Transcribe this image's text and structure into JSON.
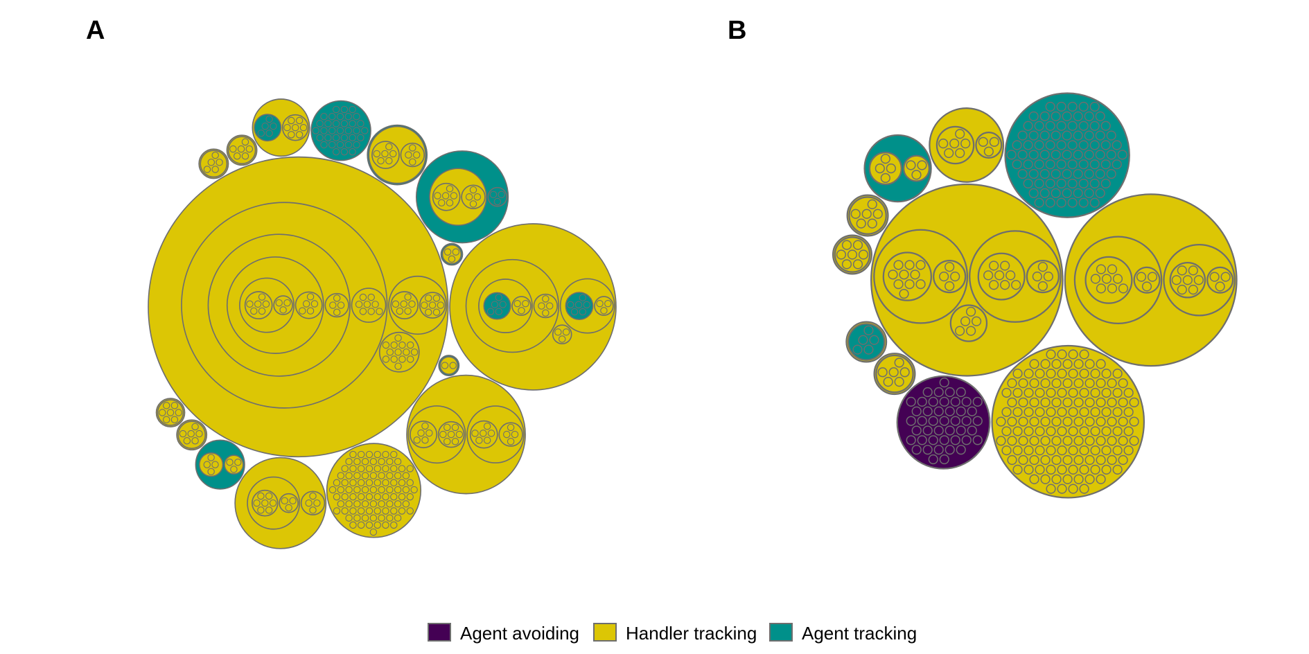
{
  "chart_data": {
    "type": "circle-packing",
    "panels": [
      {
        "label": "A",
        "tree": {
          "cat": "Handler tracking",
          "children": [
            {
              "cat": "Handler tracking",
              "children": [
                {
                  "cat": "Handler tracking",
                  "children": [
                    {
                      "cat": "Handler tracking",
                      "children": [
                        {
                          "cat": "Handler tracking",
                          "children": [
                            {
                              "cat": "Handler tracking",
                              "children": [
                                {
                                  "cat": "Handler tracking",
                                  "n": 6
                                },
                                {
                                  "cat": "Handler tracking",
                                  "n": 3
                                }
                              ]
                            },
                            {
                              "cat": "Handler tracking",
                              "n": 5
                            }
                          ]
                        },
                        {
                          "cat": "Handler tracking",
                          "n": 4
                        }
                      ]
                    },
                    {
                      "cat": "Handler tracking",
                      "n": 8
                    }
                  ]
                },
                {
                  "cat": "Handler tracking",
                  "children": [
                    {
                      "cat": "Handler tracking",
                      "n": 7
                    },
                    {
                      "cat": "Handler tracking",
                      "n": 6
                    }
                  ]
                },
                {
                  "cat": "Handler tracking",
                  "n": 14
                }
              ]
            },
            {
              "cat": "Handler tracking",
              "children": [
                {
                  "cat": "Handler tracking",
                  "children": [
                    {
                      "cat": "Handler tracking",
                      "children": [
                        {
                          "cat": "Agent tracking",
                          "n": 5
                        },
                        {
                          "cat": "Handler tracking",
                          "n": 3
                        }
                      ]
                    },
                    {
                      "cat": "Handler tracking",
                      "n": 4
                    }
                  ]
                },
                {
                  "cat": "Handler tracking",
                  "children": [
                    {
                      "cat": "Agent tracking",
                      "n": 6
                    },
                    {
                      "cat": "Handler tracking",
                      "n": 3
                    }
                  ]
                },
                {
                  "cat": "Handler tracking",
                  "n": 3
                }
              ]
            },
            {
              "cat": "Handler tracking",
              "children": [
                {
                  "cat": "Handler tracking",
                  "children": [
                    {
                      "cat": "Handler tracking",
                      "n": 7
                    },
                    {
                      "cat": "Handler tracking",
                      "n": 5
                    }
                  ]
                },
                {
                  "cat": "Handler tracking",
                  "children": [
                    {
                      "cat": "Handler tracking",
                      "n": 6
                    },
                    {
                      "cat": "Handler tracking",
                      "n": 4
                    }
                  ]
                }
              ]
            },
            {
              "cat": "Handler tracking",
              "children": [
                {
                  "cat": "Handler tracking",
                  "children": [
                    {
                      "cat": "Handler tracking",
                      "n": 7
                    },
                    {
                      "cat": "Handler tracking",
                      "n": 3
                    }
                  ]
                },
                {
                  "cat": "Handler tracking",
                  "n": 4
                }
              ]
            },
            {
              "cat": "Agent tracking",
              "children": [
                {
                  "cat": "Handler tracking",
                  "children": [
                    {
                      "cat": "Handler tracking",
                      "n": 6
                    },
                    {
                      "cat": "Handler tracking",
                      "n": 4
                    }
                  ]
                },
                {
                  "cat": "Agent tracking",
                  "n": 3
                }
              ]
            },
            {
              "cat": "Agent tracking",
              "children": [
                {
                  "cat": "Handler tracking",
                  "children": [
                    {
                      "cat": "Handler tracking",
                      "n": 6
                    },
                    {
                      "cat": "Handler tracking",
                      "n": 4
                    }
                  ]
                }
              ]
            },
            {
              "cat": "Agent tracking",
              "children": [
                {
                  "cat": "Handler tracking",
                  "n": 4
                },
                {
                  "cat": "Handler tracking",
                  "n": 3
                }
              ]
            },
            {
              "cat": "Agent tracking",
              "children": [
                {
                  "cat": "Handler tracking",
                  "n": 2
                }
              ]
            },
            {
              "cat": "Handler tracking",
              "children": [
                {
                  "cat": "Handler tracking",
                  "n": 7
                },
                {
                  "cat": "Agent tracking",
                  "n": 5
                }
              ]
            },
            {
              "cat": "Handler tracking",
              "children": [
                {
                  "cat": "Handler tracking",
                  "n": 7
                }
              ]
            },
            {
              "cat": "Handler tracking",
              "children": [
                {
                  "cat": "Handler tracking",
                  "n": 6
                }
              ]
            },
            {
              "cat": "Handler tracking",
              "children": [
                {
                  "cat": "Handler tracking",
                  "n": 6
                }
              ]
            },
            {
              "cat": "Handler tracking",
              "children": [
                {
                  "cat": "Handler tracking",
                  "n": 5
                }
              ]
            },
            {
              "cat": "Agent tracking",
              "children": [
                {
                  "cat": "Handler tracking",
                  "n": 3
                }
              ]
            },
            {
              "cat": "Handler tracking",
              "n": 95
            },
            {
              "cat": "Agent tracking",
              "n": 35
            }
          ]
        }
      },
      {
        "label": "B",
        "tree": {
          "cat": "Handler tracking",
          "children": [
            {
              "cat": "Handler tracking",
              "children": [
                {
                  "cat": "Handler tracking",
                  "children": [
                    {
                      "cat": "Handler tracking",
                      "n": 10
                    },
                    {
                      "cat": "Handler tracking",
                      "n": 4
                    }
                  ]
                },
                {
                  "cat": "Handler tracking",
                  "children": [
                    {
                      "cat": "Handler tracking",
                      "n": 8
                    },
                    {
                      "cat": "Handler tracking",
                      "n": 4
                    }
                  ]
                },
                {
                  "cat": "Handler tracking",
                  "n": 5
                }
              ]
            },
            {
              "cat": "Handler tracking",
              "children": [
                {
                  "cat": "Handler tracking",
                  "children": [
                    {
                      "cat": "Handler tracking",
                      "n": 8
                    },
                    {
                      "cat": "Handler tracking",
                      "n": 3
                    }
                  ]
                },
                {
                  "cat": "Handler tracking",
                  "children": [
                    {
                      "cat": "Handler tracking",
                      "n": 7
                    },
                    {
                      "cat": "Handler tracking",
                      "n": 3
                    }
                  ]
                }
              ]
            },
            {
              "cat": "Agent tracking",
              "children": [
                {
                  "cat": "Handler tracking",
                  "n": 4
                },
                {
                  "cat": "Handler tracking",
                  "n": 3
                }
              ]
            },
            {
              "cat": "Handler tracking",
              "children": [
                {
                  "cat": "Handler tracking",
                  "n": 6
                },
                {
                  "cat": "Handler tracking",
                  "n": 3
                }
              ]
            },
            {
              "cat": "Handler tracking",
              "children": [
                {
                  "cat": "Handler tracking",
                  "n": 7
                }
              ]
            },
            {
              "cat": "Handler tracking",
              "children": [
                {
                  "cat": "Handler tracking",
                  "n": 6
                }
              ]
            },
            {
              "cat": "Handler tracking",
              "children": [
                {
                  "cat": "Handler tracking",
                  "n": 6
                }
              ]
            },
            {
              "cat": "Handler tracking",
              "children": [
                {
                  "cat": "Agent tracking",
                  "n": 5
                }
              ]
            },
            {
              "cat": "Handler tracking",
              "n": 150
            },
            {
              "cat": "Agent tracking",
              "n": 90
            },
            {
              "cat": "Agent avoiding",
              "n": 45
            }
          ]
        }
      }
    ],
    "legend": {
      "placement": "bottom",
      "items": [
        {
          "label": "Agent avoiding",
          "color": "#440154"
        },
        {
          "label": "Handler tracking",
          "color": "#DCC605"
        },
        {
          "label": "Agent tracking",
          "color": "#00908A"
        }
      ]
    },
    "stroke_color": "#6E6E6E"
  }
}
